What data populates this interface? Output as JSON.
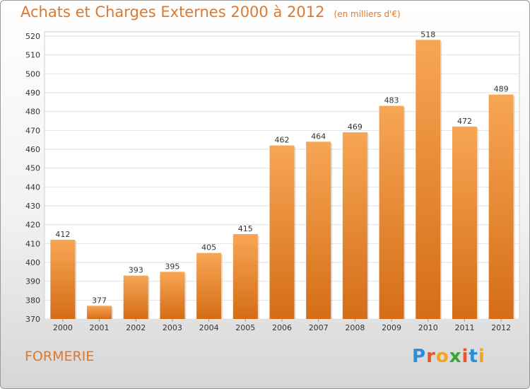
{
  "header": {
    "title": "Achats et Charges Externes 2000 à 2012",
    "unit": "(en milliers d'€)"
  },
  "footer": {
    "city": "FORMERIE",
    "logo_letters": [
      "P",
      "r",
      "o",
      "x",
      "i",
      "t",
      "i"
    ],
    "logo_colors": [
      "#2b8ed8",
      "#e8552c",
      "#f2a51c",
      "#3aa43a",
      "#e8552c",
      "#2b8ed8",
      "#f2a51c"
    ]
  },
  "colors": {
    "bar_top": "#f7a654",
    "bar_bottom": "#d56d17",
    "accent": "#e0782a"
  },
  "chart_data": {
    "type": "bar",
    "categories": [
      "2000",
      "2001",
      "2002",
      "2003",
      "2004",
      "2005",
      "2006",
      "2007",
      "2008",
      "2009",
      "2010",
      "2011",
      "2012"
    ],
    "values": [
      412,
      377,
      393,
      395,
      405,
      415,
      462,
      464,
      469,
      483,
      518,
      472,
      489
    ],
    "title": "Achats et Charges Externes 2000 à 2012",
    "xlabel": "",
    "ylabel": "",
    "ylim": [
      370,
      520
    ],
    "yticks": [
      370,
      380,
      390,
      400,
      410,
      420,
      430,
      440,
      450,
      460,
      470,
      480,
      490,
      500,
      510,
      520
    ],
    "grid": true,
    "data_labels": true
  }
}
